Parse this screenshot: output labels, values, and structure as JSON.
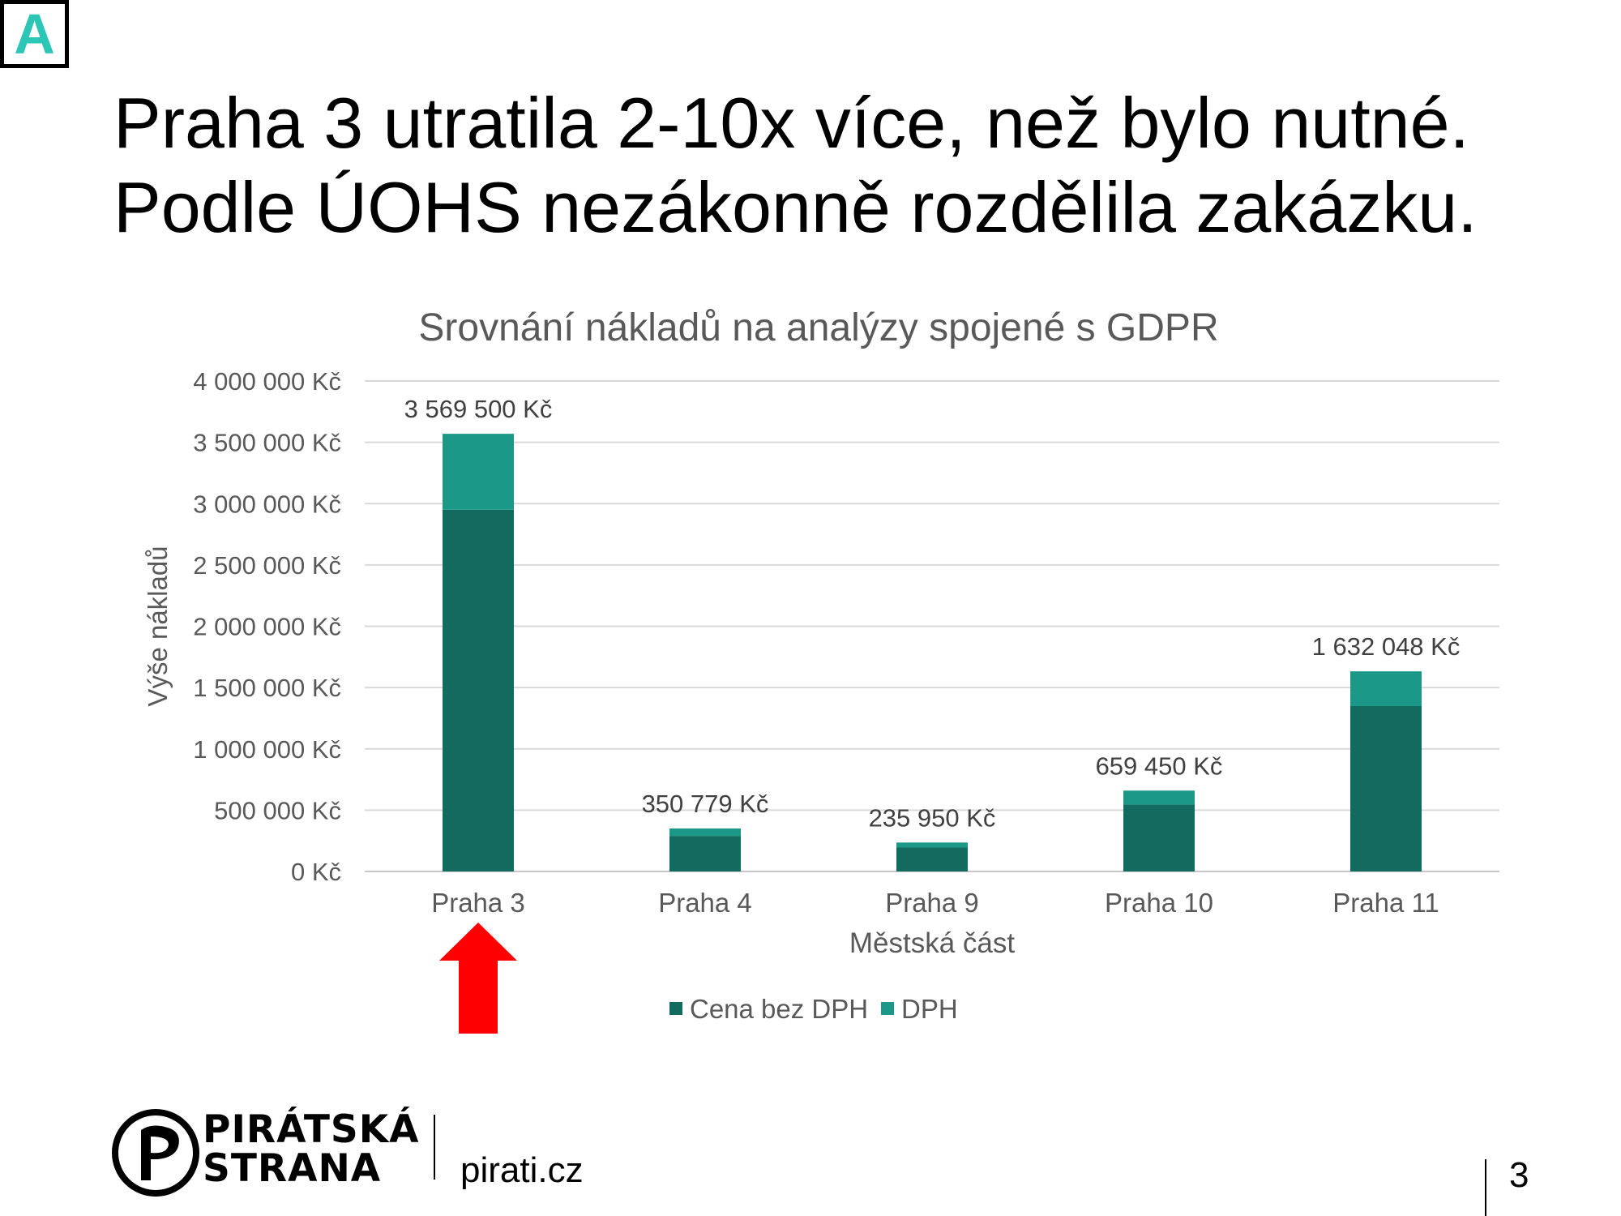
{
  "badge": {
    "letter": "A",
    "color": "#2bc6b5"
  },
  "headline": {
    "line1": "Praha 3 utratila 2-10x více, než bylo nutné.",
    "line2": "Podle ÚOHS nezákonně rozdělila zakázku."
  },
  "chart_data": {
    "type": "bar",
    "stacked": true,
    "title": "Srovnání nákladů na analýzy spojené s GDPR",
    "xlabel": "Městská část",
    "ylabel": "Výše nákladů",
    "categories": [
      "Praha 3",
      "Praha 4",
      "Praha 9",
      "Praha 10",
      "Praha 11"
    ],
    "series": [
      {
        "name": "Cena bez DPH",
        "color": "#126b5e",
        "values": [
          2950000,
          289900,
          195000,
          545000,
          1348800
        ]
      },
      {
        "name": "DPH",
        "color": "#1b9887",
        "values": [
          619500,
          60879,
          40950,
          114450,
          283248
        ]
      }
    ],
    "totals": [
      3569500,
      350779,
      235950,
      659450,
      1632048
    ],
    "total_labels": [
      "3 569 500 Kč",
      "350 779 Kč",
      "235 950 Kč",
      "659 450 Kč",
      "1 632 048 Kč"
    ],
    "ylim": [
      0,
      4000000
    ],
    "yticks": [
      0,
      500000,
      1000000,
      1500000,
      2000000,
      2500000,
      3000000,
      3500000,
      4000000
    ],
    "ytick_labels": [
      "0 Kč",
      "500 000 Kč",
      "1 000 000 Kč",
      "1 500 000 Kč",
      "2 000 000 Kč",
      "2 500 000 Kč",
      "3 000 000 Kč",
      "3 500 000 Kč",
      "4 000 000 Kč"
    ],
    "grid": true,
    "legend_position": "bottom",
    "highlight": {
      "category": "Praha 3",
      "marker": "red-arrow",
      "color": "#ff0000"
    }
  },
  "footer": {
    "brand_line1": "PIRÁTSKÁ",
    "brand_line2": "STRANA",
    "site": "pirati.cz",
    "page_number": "3"
  }
}
